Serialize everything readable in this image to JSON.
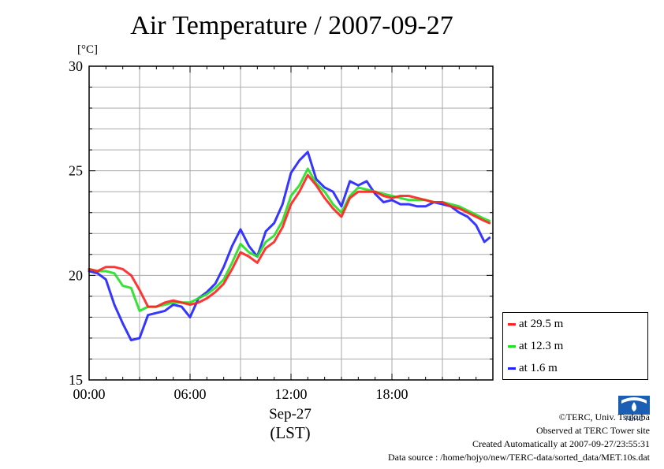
{
  "title": "Air Temperature / 2007-09-27",
  "unit_label": "[°C]",
  "x_date_label": "Sep-27",
  "x_zone_label": "(LST)",
  "credits": {
    "line1": "©TERC, Univ. Tsukuba",
    "line2": "Observed at TERC Tower site",
    "line3": "Created Automatically at 2007-09-27/23:55:31",
    "line4": "Data source : /home/hojyo/new/TERC-data/sorted_data/MET.10s.dat"
  },
  "logo_text": "TERC",
  "chart_data": {
    "type": "line",
    "title": "Air Temperature / 2007-09-27",
    "ylabel": "[°C]",
    "xlabel": "Sep-27 (LST)",
    "ylim": [
      15,
      30
    ],
    "xlim": [
      0,
      24
    ],
    "x_ticks": [
      {
        "hour": 0,
        "label": "00:00"
      },
      {
        "hour": 6,
        "label": "06:00"
      },
      {
        "hour": 12,
        "label": "12:00"
      },
      {
        "hour": 18,
        "label": "18:00"
      }
    ],
    "y_ticks": [
      {
        "value": 15,
        "label": "15"
      },
      {
        "value": 20,
        "label": "20"
      },
      {
        "value": 25,
        "label": "25"
      },
      {
        "value": 30,
        "label": "30"
      }
    ],
    "grid": true,
    "legend_position": "bottom-right outside",
    "x_hours": [
      0.0,
      0.5,
      1.0,
      1.5,
      2.0,
      2.5,
      3.0,
      3.5,
      4.0,
      4.5,
      5.0,
      5.5,
      6.0,
      6.5,
      7.0,
      7.5,
      8.0,
      8.5,
      9.0,
      9.5,
      10.0,
      10.5,
      11.0,
      11.5,
      12.0,
      12.5,
      13.0,
      13.5,
      14.0,
      14.5,
      15.0,
      15.5,
      16.0,
      16.5,
      17.0,
      17.5,
      18.0,
      18.5,
      19.0,
      19.5,
      20.0,
      20.5,
      21.0,
      21.5,
      22.0,
      22.5,
      23.0,
      23.5,
      23.8
    ],
    "series": [
      {
        "name": "at 29.5 m",
        "color": "#ff2020",
        "values": [
          20.3,
          20.2,
          20.4,
          20.4,
          20.3,
          20.0,
          19.3,
          18.5,
          18.5,
          18.7,
          18.8,
          18.7,
          18.6,
          18.7,
          18.9,
          19.2,
          19.6,
          20.3,
          21.1,
          20.9,
          20.6,
          21.3,
          21.6,
          22.3,
          23.4,
          24.0,
          24.8,
          24.3,
          23.7,
          23.2,
          22.8,
          23.7,
          24.0,
          24.0,
          24.0,
          23.8,
          23.7,
          23.8,
          23.8,
          23.7,
          23.6,
          23.5,
          23.5,
          23.3,
          23.2,
          23.0,
          22.8,
          22.6,
          22.5
        ]
      },
      {
        "name": "at 12.3 m",
        "color": "#20e020",
        "values": [
          20.3,
          20.2,
          20.2,
          20.1,
          19.5,
          19.4,
          18.3,
          18.5,
          18.5,
          18.6,
          18.7,
          18.7,
          18.7,
          18.9,
          19.1,
          19.4,
          19.8,
          20.6,
          21.5,
          21.1,
          20.9,
          21.6,
          21.9,
          22.6,
          23.8,
          24.3,
          25.1,
          24.4,
          24.0,
          23.4,
          23.0,
          23.8,
          24.2,
          24.1,
          24.0,
          23.9,
          23.8,
          23.7,
          23.6,
          23.6,
          23.6,
          23.5,
          23.5,
          23.4,
          23.3,
          23.1,
          22.9,
          22.7,
          22.6
        ]
      },
      {
        "name": "at 1.6 m",
        "color": "#2020ff",
        "values": [
          20.2,
          20.1,
          19.8,
          18.6,
          17.7,
          16.9,
          17.0,
          18.1,
          18.2,
          18.3,
          18.6,
          18.5,
          18.0,
          18.9,
          19.2,
          19.6,
          20.4,
          21.4,
          22.2,
          21.4,
          20.9,
          22.1,
          22.5,
          23.4,
          24.9,
          25.5,
          25.9,
          24.6,
          24.2,
          24.0,
          23.3,
          24.5,
          24.3,
          24.5,
          23.9,
          23.5,
          23.6,
          23.4,
          23.4,
          23.3,
          23.3,
          23.5,
          23.4,
          23.3,
          23.0,
          22.8,
          22.4,
          21.6,
          21.8
        ]
      }
    ]
  }
}
